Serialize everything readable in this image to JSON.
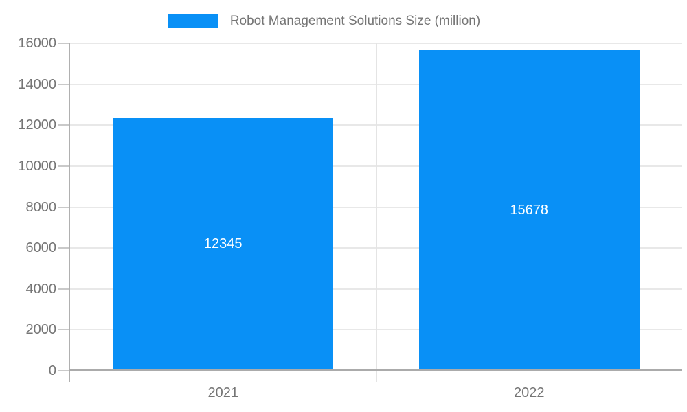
{
  "legend": {
    "label": "Robot Management Solutions Size (million)"
  },
  "chart_data": {
    "type": "bar",
    "title": "",
    "categories": [
      "2021",
      "2022"
    ],
    "series": [
      {
        "name": "Robot Management Solutions Size (million)",
        "values": [
          12345,
          15678
        ]
      }
    ],
    "values": [
      12345,
      15678
    ],
    "xlabel": "",
    "ylabel": "",
    "ylim": [
      0,
      16000
    ],
    "yticks": [
      0,
      2000,
      4000,
      6000,
      8000,
      10000,
      12000,
      14000,
      16000
    ],
    "grid": true,
    "legend_position": "top",
    "value_labels": "inside-center",
    "bar_width_ratio": 0.72
  },
  "colors": {
    "bar": "#0990F6",
    "text": "#757575",
    "value_label": "#FFFFFF",
    "axis_line": "#B0B0B0",
    "x_axis_line": "#ABABAB",
    "gridline": "#E8E8E8",
    "background": "#FFFFFF"
  }
}
